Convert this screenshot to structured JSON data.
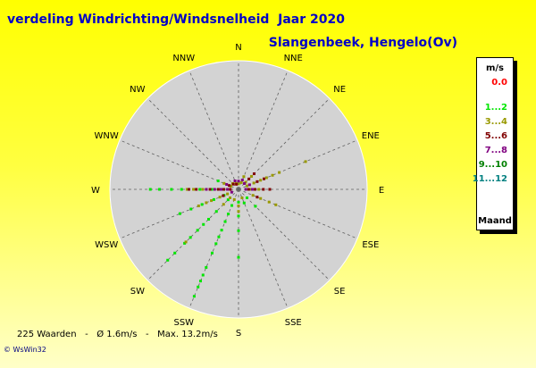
{
  "header": {
    "title": "verdeling Windrichting/Windsnelheid  Jaar 2020",
    "station": "Slangenbeek, Hengelo(Ov)"
  },
  "footer": {
    "summary": "225 Waarden   -   Ø 1.6m/s   -   Max. 13.2m/s",
    "credit": "© WsWin32"
  },
  "legend": {
    "unit": "m/s",
    "footer": "Maand",
    "items": [
      {
        "label": "0.0",
        "color": "#ff0000"
      },
      {
        "label": "1...2",
        "color": "#00e600"
      },
      {
        "label": "3...4",
        "color": "#999900"
      },
      {
        "label": "5...6",
        "color": "#800000"
      },
      {
        "label": "7...8",
        "color": "#800080"
      },
      {
        "label": "9...10",
        "color": "#008000"
      },
      {
        "label": "11...12",
        "color": "#008080"
      }
    ]
  },
  "chart_data": {
    "type": "scatter",
    "subtype": "polar wind rose",
    "directions": [
      "N",
      "NNE",
      "NE",
      "ENE",
      "E",
      "ESE",
      "SE",
      "SSE",
      "S",
      "SSW",
      "SW",
      "WSW",
      "W",
      "WNW",
      "NW",
      "NNW"
    ],
    "radial_unit": "m/s",
    "radial_max": 14,
    "background_color": "#d3d3d3",
    "points": [
      {
        "dir": 6,
        "speed": 1.3,
        "cls": 1
      },
      {
        "dir": 6,
        "speed": 2.6,
        "cls": 1
      },
      {
        "dir": 7,
        "speed": 1.6,
        "cls": 1
      },
      {
        "dir": 8,
        "speed": 1.4,
        "cls": 1
      },
      {
        "dir": 8,
        "speed": 2.9,
        "cls": 1
      },
      {
        "dir": 8,
        "speed": 4.5,
        "cls": 1
      },
      {
        "dir": 8,
        "speed": 7.4,
        "cls": 1
      },
      {
        "dir": 9,
        "speed": 1.9,
        "cls": 1
      },
      {
        "dir": 9,
        "speed": 2.9,
        "cls": 1
      },
      {
        "dir": 9,
        "speed": 3.8,
        "cls": 1
      },
      {
        "dir": 9,
        "speed": 4.8,
        "cls": 1
      },
      {
        "dir": 9,
        "speed": 5.6,
        "cls": 1
      },
      {
        "dir": 9,
        "speed": 6.4,
        "cls": 1
      },
      {
        "dir": 9,
        "speed": 7.5,
        "cls": 1
      },
      {
        "dir": 9,
        "speed": 9.2,
        "cls": 1
      },
      {
        "dir": 9,
        "speed": 10.1,
        "cls": 1
      },
      {
        "dir": 9,
        "speed": 10.8,
        "cls": 1
      },
      {
        "dir": 9,
        "speed": 11.5,
        "cls": 1
      },
      {
        "dir": 9,
        "speed": 12.6,
        "cls": 1
      },
      {
        "dir": 10,
        "speed": 1.6,
        "cls": 1
      },
      {
        "dir": 10,
        "speed": 3.4,
        "cls": 1
      },
      {
        "dir": 10,
        "speed": 4.6,
        "cls": 1
      },
      {
        "dir": 10,
        "speed": 5.4,
        "cls": 1
      },
      {
        "dir": 10,
        "speed": 6.3,
        "cls": 1
      },
      {
        "dir": 10,
        "speed": 7.4,
        "cls": 1
      },
      {
        "dir": 10,
        "speed": 8.3,
        "cls": 1
      },
      {
        "dir": 10,
        "speed": 9.8,
        "cls": 1
      },
      {
        "dir": 10,
        "speed": 10.9,
        "cls": 1
      },
      {
        "dir": 11,
        "speed": 1.7,
        "cls": 1
      },
      {
        "dir": 11,
        "speed": 2.9,
        "cls": 1
      },
      {
        "dir": 11,
        "speed": 4.3,
        "cls": 1
      },
      {
        "dir": 11,
        "speed": 5.6,
        "cls": 1
      },
      {
        "dir": 11,
        "speed": 6.9,
        "cls": 1
      },
      {
        "dir": 12,
        "speed": 2.9,
        "cls": 1
      },
      {
        "dir": 12,
        "speed": 4.2,
        "cls": 1
      },
      {
        "dir": 12,
        "speed": 6.2,
        "cls": 1
      },
      {
        "dir": 12,
        "speed": 7.3,
        "cls": 1
      },
      {
        "dir": 12,
        "speed": 8.6,
        "cls": 1
      },
      {
        "dir": 12,
        "speed": 9.6,
        "cls": 1
      },
      {
        "dir": 13,
        "speed": 2.4,
        "cls": 1
      },
      {
        "dir": 0,
        "speed": 0.6,
        "cls": 2
      },
      {
        "dir": 1,
        "speed": 0.8,
        "cls": 2
      },
      {
        "dir": 1,
        "speed": 1.5,
        "cls": 2
      },
      {
        "dir": 2,
        "speed": 1.1,
        "cls": 2
      },
      {
        "dir": 2,
        "speed": 2.0,
        "cls": 2
      },
      {
        "dir": 3,
        "speed": 1.0,
        "cls": 2
      },
      {
        "dir": 3,
        "speed": 1.8,
        "cls": 2
      },
      {
        "dir": 3,
        "speed": 2.6,
        "cls": 2
      },
      {
        "dir": 3,
        "speed": 3.3,
        "cls": 2
      },
      {
        "dir": 3,
        "speed": 4.0,
        "cls": 2
      },
      {
        "dir": 3,
        "speed": 4.8,
        "cls": 2
      },
      {
        "dir": 3,
        "speed": 7.9,
        "cls": 2
      },
      {
        "dir": 4,
        "speed": 1.3,
        "cls": 2
      },
      {
        "dir": 4,
        "speed": 2.2,
        "cls": 2
      },
      {
        "dir": 5,
        "speed": 1.7,
        "cls": 2
      },
      {
        "dir": 5,
        "speed": 2.6,
        "cls": 2
      },
      {
        "dir": 5,
        "speed": 3.6,
        "cls": 2
      },
      {
        "dir": 5,
        "speed": 4.4,
        "cls": 2
      },
      {
        "dir": 7,
        "speed": 1.0,
        "cls": 2
      },
      {
        "dir": 8,
        "speed": 1.8,
        "cls": 2
      },
      {
        "dir": 8,
        "speed": 2.4,
        "cls": 2
      },
      {
        "dir": 9,
        "speed": 1.2,
        "cls": 2
      },
      {
        "dir": 10,
        "speed": 1.3,
        "cls": 2
      },
      {
        "dir": 10,
        "speed": 2.3,
        "cls": 2
      },
      {
        "dir": 10,
        "speed": 8.1,
        "cls": 2
      },
      {
        "dir": 11,
        "speed": 1.3,
        "cls": 2
      },
      {
        "dir": 11,
        "speed": 2.2,
        "cls": 2
      },
      {
        "dir": 11,
        "speed": 3.2,
        "cls": 2
      },
      {
        "dir": 11,
        "speed": 3.8,
        "cls": 2
      },
      {
        "dir": 11,
        "speed": 4.7,
        "cls": 2
      },
      {
        "dir": 12,
        "speed": 1.2,
        "cls": 2
      },
      {
        "dir": 12,
        "speed": 3.9,
        "cls": 2
      },
      {
        "dir": 12,
        "speed": 4.9,
        "cls": 2
      },
      {
        "dir": 12,
        "speed": 5.6,
        "cls": 2
      },
      {
        "dir": 13,
        "speed": 0.9,
        "cls": 2
      },
      {
        "dir": 13,
        "speed": 1.7,
        "cls": 2
      },
      {
        "dir": 14,
        "speed": 0.9,
        "cls": 2
      },
      {
        "dir": 15,
        "speed": 0.7,
        "cls": 2
      },
      {
        "dir": 2,
        "speed": 1.6,
        "cls": 3
      },
      {
        "dir": 2,
        "speed": 2.4,
        "cls": 3
      },
      {
        "dir": 3,
        "speed": 2.2,
        "cls": 3
      },
      {
        "dir": 3,
        "speed": 3.0,
        "cls": 3
      },
      {
        "dir": 4,
        "speed": 1.1,
        "cls": 3
      },
      {
        "dir": 4,
        "speed": 1.8,
        "cls": 3
      },
      {
        "dir": 4,
        "speed": 2.7,
        "cls": 3
      },
      {
        "dir": 4,
        "speed": 3.4,
        "cls": 3
      },
      {
        "dir": 5,
        "speed": 2.2,
        "cls": 3
      },
      {
        "dir": 11,
        "speed": 1.8,
        "cls": 3
      },
      {
        "dir": 12,
        "speed": 0.9,
        "cls": 3
      },
      {
        "dir": 12,
        "speed": 1.6,
        "cls": 3
      },
      {
        "dir": 12,
        "speed": 2.2,
        "cls": 3
      },
      {
        "dir": 12,
        "speed": 3.1,
        "cls": 3
      },
      {
        "dir": 12,
        "speed": 4.6,
        "cls": 3
      },
      {
        "dir": 12,
        "speed": 5.4,
        "cls": 3
      },
      {
        "dir": 13,
        "speed": 1.1,
        "cls": 3
      },
      {
        "dir": 14,
        "speed": 0.8,
        "cls": 3
      },
      {
        "dir": 15,
        "speed": 0.6,
        "cls": 3
      },
      {
        "dir": 0,
        "speed": 0.9,
        "cls": 4
      },
      {
        "dir": 1,
        "speed": 1.1,
        "cls": 4
      },
      {
        "dir": 2,
        "speed": 0.9,
        "cls": 4
      },
      {
        "dir": 3,
        "speed": 1.3,
        "cls": 4
      },
      {
        "dir": 4,
        "speed": 0.8,
        "cls": 4
      },
      {
        "dir": 4,
        "speed": 1.5,
        "cls": 4
      },
      {
        "dir": 12,
        "speed": 1.2,
        "cls": 4
      },
      {
        "dir": 12,
        "speed": 1.9,
        "cls": 4
      },
      {
        "dir": 12,
        "speed": 2.6,
        "cls": 4
      },
      {
        "dir": 12,
        "speed": 3.5,
        "cls": 4
      },
      {
        "dir": 13,
        "speed": 1.4,
        "cls": 4
      },
      {
        "dir": 11,
        "speed": 0.8,
        "cls": 4
      },
      {
        "dir": 15,
        "speed": 1.0,
        "cls": 4
      }
    ]
  }
}
